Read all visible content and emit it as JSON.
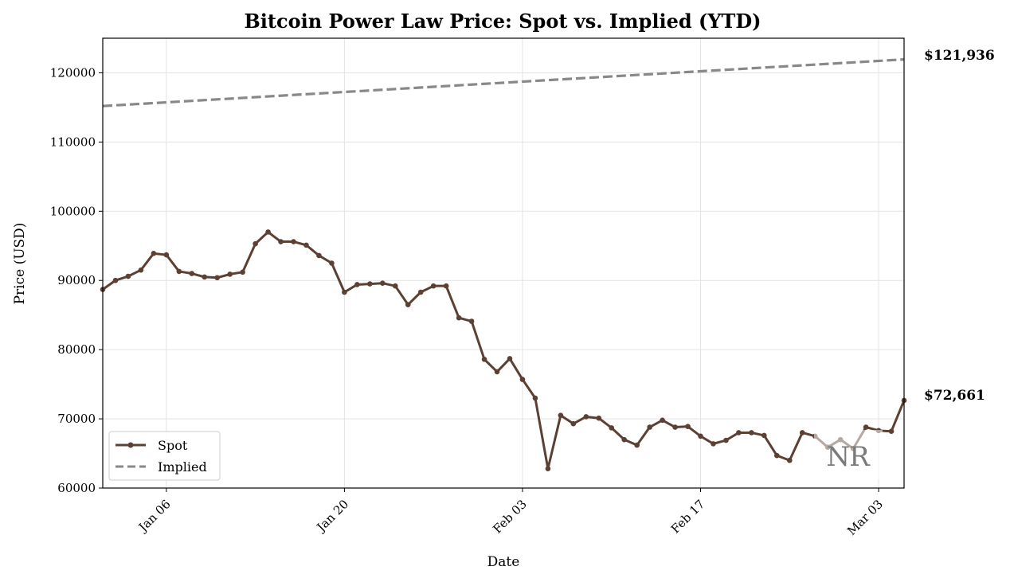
{
  "chart_data": {
    "type": "line",
    "title": "Bitcoin Power Law Price: Spot vs. Implied (YTD)",
    "xlabel": "Date",
    "ylabel": "Price (USD)",
    "x_range_days": [
      0,
      63
    ],
    "ylim": [
      60000,
      125000
    ],
    "y_ticks": [
      60000,
      70000,
      80000,
      90000,
      100000,
      110000,
      120000
    ],
    "x_ticks": [
      {
        "day": 5,
        "label": "Jan 06"
      },
      {
        "day": 19,
        "label": "Jan 20"
      },
      {
        "day": 33,
        "label": "Feb 03"
      },
      {
        "day": 47,
        "label": "Feb 17"
      },
      {
        "day": 61,
        "label": "Mar 03"
      }
    ],
    "grid": true,
    "legend_position": "lower-left",
    "series": [
      {
        "name": "Spot",
        "style": "solid-with-markers",
        "color": "#5b4033",
        "x_days": [
          0,
          1,
          2,
          3,
          4,
          5,
          6,
          7,
          8,
          9,
          10,
          11,
          12,
          13,
          14,
          15,
          16,
          17,
          18,
          19,
          20,
          21,
          22,
          23,
          24,
          25,
          26,
          27,
          28,
          29,
          30,
          31,
          32,
          33,
          34,
          35,
          36,
          37,
          38,
          39,
          40,
          41,
          42,
          43,
          44,
          45,
          46,
          47,
          48,
          49,
          50,
          51,
          52,
          53,
          54,
          55,
          56,
          57,
          58,
          59,
          60,
          61,
          62,
          63
        ],
        "values": [
          88700,
          90000,
          90600,
          91500,
          93900,
          93700,
          91300,
          91000,
          90500,
          90400,
          90900,
          91200,
          95300,
          97000,
          95600,
          95600,
          95100,
          93600,
          92500,
          88300,
          89400,
          89500,
          89600,
          89200,
          86500,
          88300,
          89200,
          89200,
          84600,
          84100,
          78600,
          76800,
          78700,
          75700,
          73000,
          62800,
          70500,
          69300,
          70300,
          70100,
          68700,
          67000,
          66200,
          68800,
          69800,
          68800,
          68900,
          67500,
          66400,
          66900,
          68000,
          68000,
          67600,
          64700,
          64000,
          68000,
          67500,
          65900,
          67000,
          65700,
          68800,
          68300,
          68200,
          72661
        ]
      },
      {
        "name": "Implied",
        "style": "dashed",
        "color": "#888888",
        "x_days": [
          0,
          63
        ],
        "values": [
          115200,
          121936
        ]
      }
    ],
    "end_labels": [
      {
        "series": "Implied",
        "text": "$121,936",
        "value": 121936,
        "color": "#8a8a8a"
      },
      {
        "series": "Spot",
        "text": "$72,661",
        "value": 72661,
        "color": "#5b4033"
      }
    ],
    "watermark": "NR"
  }
}
